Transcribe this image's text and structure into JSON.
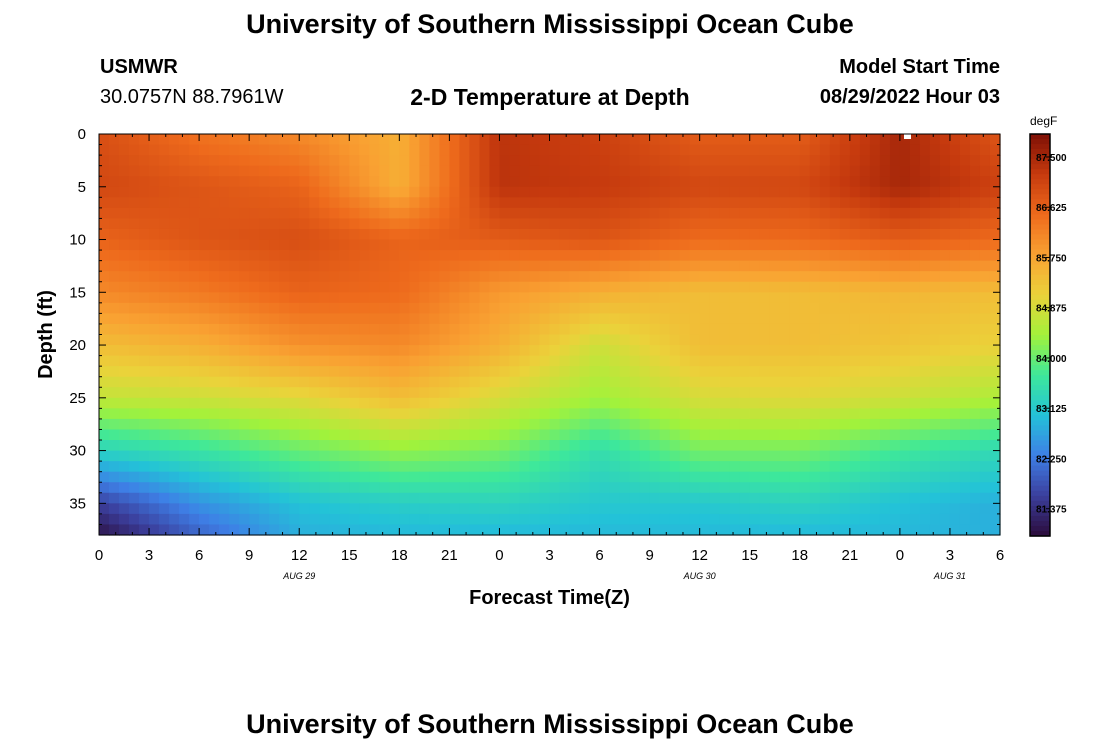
{
  "header": {
    "title": "University of Southern Mississippi Ocean Cube",
    "station": "USMWR",
    "coords": "30.0757N  88.7961W",
    "subtitle": "2-D Temperature at Depth",
    "model_start_label": "Model Start Time",
    "model_start_value": "08/29/2022 Hour 03"
  },
  "footer": {
    "title_repeat": "University of Southern Mississippi Ocean Cube"
  },
  "chart_data": {
    "type": "heatmap",
    "xlabel": "Forecast Time(Z)",
    "ylabel": "Depth (ft)",
    "x_tick_labels": [
      "0",
      "3",
      "6",
      "9",
      "12",
      "15",
      "18",
      "21",
      "0",
      "3",
      "6",
      "9",
      "12",
      "15",
      "18",
      "21",
      "0",
      "3",
      "6"
    ],
    "date_labels": [
      {
        "label": "AUG 29",
        "at_tick": 4
      },
      {
        "label": "AUG 30",
        "at_tick": 12
      },
      {
        "label": "AUG 31",
        "at_tick": 17
      }
    ],
    "y_ticks": [
      0,
      5,
      10,
      15,
      20,
      25,
      30,
      35
    ],
    "ylim": [
      0,
      38
    ],
    "y_inverted": true,
    "colorbar": {
      "unit": "degF",
      "ticks": [
        "87.500",
        "86.625",
        "85.750",
        "84.875",
        "84.000",
        "83.125",
        "82.250",
        "81.375"
      ],
      "min": 80.9,
      "max": 87.9,
      "colors": [
        "#2b0b3a",
        "#3b3f9d",
        "#3e7fe6",
        "#23c2d8",
        "#3ee89a",
        "#a3f23a",
        "#ebd23a",
        "#f9a132",
        "#ee6a1c",
        "#c63a0e",
        "#7e1005"
      ]
    },
    "grid": {
      "times_h": [
        0,
        6,
        12,
        18,
        24,
        30,
        36,
        42,
        48,
        54
      ],
      "depths_ft": [
        0,
        5,
        10,
        15,
        20,
        25,
        30,
        35,
        38
      ],
      "temps_degF": [
        [
          86.9,
          86.4,
          86.1,
          85.6,
          87.3,
          87.1,
          86.7,
          86.7,
          87.5,
          86.8
        ],
        [
          87.0,
          86.8,
          86.6,
          85.6,
          87.3,
          87.2,
          87.0,
          87.0,
          87.5,
          87.1
        ],
        [
          86.6,
          86.8,
          86.9,
          86.6,
          86.7,
          86.8,
          86.5,
          86.5,
          86.7,
          86.5
        ],
        [
          86.1,
          86.3,
          86.6,
          86.5,
          85.9,
          85.6,
          85.4,
          85.4,
          85.5,
          85.4
        ],
        [
          85.4,
          85.6,
          86.0,
          86.1,
          85.6,
          84.8,
          85.4,
          85.4,
          85.3,
          85.1
        ],
        [
          84.7,
          84.8,
          85.0,
          85.4,
          84.9,
          84.4,
          84.9,
          85.0,
          84.8,
          84.5
        ],
        [
          83.3,
          83.6,
          84.0,
          84.3,
          84.1,
          83.5,
          84.1,
          84.1,
          83.7,
          83.4
        ],
        [
          81.6,
          82.5,
          83.0,
          83.2,
          83.3,
          83.1,
          83.1,
          83.3,
          83.0,
          82.8
        ],
        [
          81.0,
          82.0,
          82.8,
          82.9,
          82.9,
          82.9,
          82.9,
          82.9,
          82.9,
          82.8
        ]
      ]
    }
  }
}
